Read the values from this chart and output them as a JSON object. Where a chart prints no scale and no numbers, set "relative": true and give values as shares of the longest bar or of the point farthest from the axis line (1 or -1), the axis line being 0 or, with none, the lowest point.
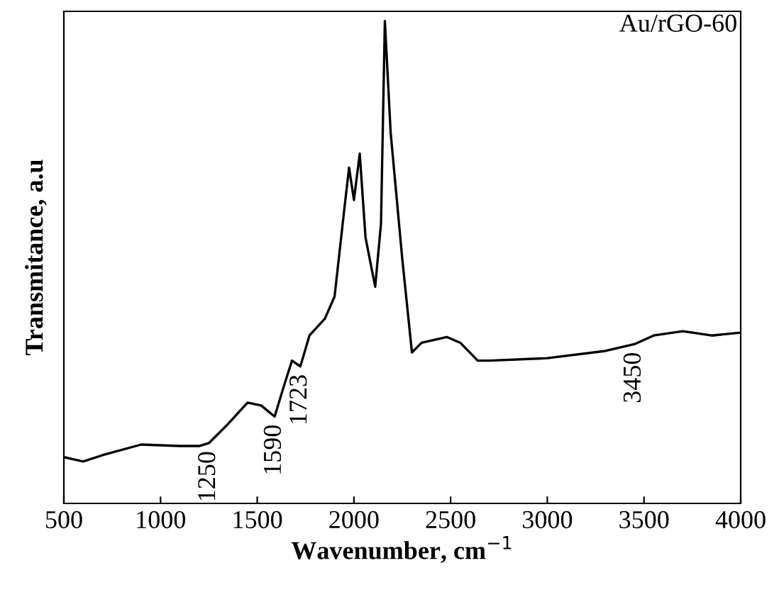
{
  "chart_data": {
    "type": "line",
    "relative": true,
    "xlabel": "Wavenumber, cm$^{−1}$",
    "ylabel": "Transmitance, a.u",
    "x": [
      500,
      600,
      700,
      900,
      1100,
      1200,
      1250,
      1350,
      1450,
      1520,
      1590,
      1640,
      1680,
      1723,
      1770,
      1850,
      1900,
      1950,
      1975,
      2000,
      2030,
      2060,
      2110,
      2140,
      2160,
      2190,
      2250,
      2300,
      2350,
      2480,
      2550,
      2640,
      2700,
      3000,
      3300,
      3450,
      3550,
      3700,
      3850,
      4000
    ],
    "series": [
      {
        "color": "#000000",
        "values": [
          0.096,
          0.087,
          0.1,
          0.122,
          0.119,
          0.119,
          0.125,
          0.165,
          0.209,
          0.203,
          0.18,
          0.246,
          0.296,
          0.284,
          0.348,
          0.383,
          0.429,
          0.609,
          0.696,
          0.629,
          0.725,
          0.551,
          0.449,
          0.58,
          1.0,
          0.768,
          0.507,
          0.313,
          0.333,
          0.345,
          0.333,
          0.296,
          0.296,
          0.301,
          0.316,
          0.33,
          0.348,
          0.357,
          0.348,
          0.354
        ]
      }
    ],
    "xlim": [
      500,
      4000
    ],
    "xticks": [
      500,
      1000,
      1500,
      2000,
      2500,
      3000,
      3500,
      4000
    ],
    "tick_labels": "x",
    "grid": false,
    "annotations": [
      "Au/rGO-60",
      {
        "text": "1250",
        "x": 1250,
        "y": 0.125
      },
      {
        "text": "1590",
        "x": 1590,
        "y": 0.18
      },
      {
        "text": "1723",
        "x": 1723,
        "y": 0.284
      },
      {
        "text": "3450",
        "x": 3450,
        "y": 0.33
      }
    ]
  }
}
